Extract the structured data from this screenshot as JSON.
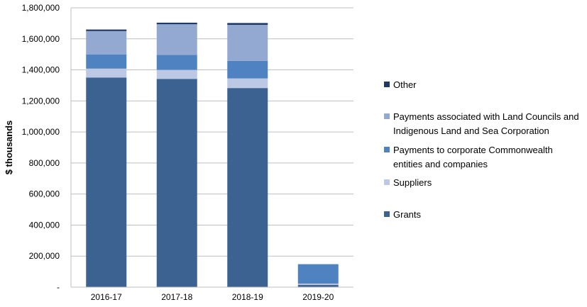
{
  "chart_data": {
    "type": "bar",
    "stacked": true,
    "categories": [
      "2016-17",
      "2017-18",
      "2018-19",
      "2019-20"
    ],
    "ylabel": "$ thousands",
    "ylim": [
      0,
      1800000
    ],
    "yticks": [
      0,
      200000,
      400000,
      600000,
      800000,
      1000000,
      1200000,
      1400000,
      1600000,
      1800000
    ],
    "ytick_labels": [
      "-",
      "200,000",
      "400,000",
      "600,000",
      "800,000",
      "1,000,000",
      "1,200,000",
      "1,400,000",
      "1,600,000",
      "1,800,000"
    ],
    "grid": true,
    "legend_position": "right",
    "series": [
      {
        "name": "Grants",
        "color": "#3c6291",
        "values": [
          1350000,
          1342000,
          1283000,
          15000
        ]
      },
      {
        "name": "Suppliers",
        "color": "#bcc8e4",
        "values": [
          58000,
          58000,
          62000,
          8000
        ]
      },
      {
        "name": "Payments to corporate Commonwealth entities and companies",
        "color": "#4f82c0",
        "values": [
          92000,
          96000,
          113000,
          125000
        ]
      },
      {
        "name": "Payments associated with Land Councils and Indigenous Land and Sea Corporation",
        "color": "#93a9d2",
        "values": [
          150000,
          198000,
          232000,
          0
        ]
      },
      {
        "name": "Other",
        "color": "#1f3864",
        "values": [
          10000,
          10000,
          12000,
          0
        ]
      }
    ],
    "legend": [
      {
        "series": 4,
        "lines": [
          "Other"
        ]
      },
      {
        "series": 3,
        "lines": [
          "Payments associated with Land Councils and",
          "Indigenous Land and Sea Corporation"
        ]
      },
      {
        "series": 2,
        "lines": [
          "Payments to corporate Commonwealth",
          "entities and companies"
        ]
      },
      {
        "series": 1,
        "lines": [
          "Suppliers"
        ]
      },
      {
        "series": 0,
        "lines": [
          "Grants"
        ]
      }
    ]
  }
}
